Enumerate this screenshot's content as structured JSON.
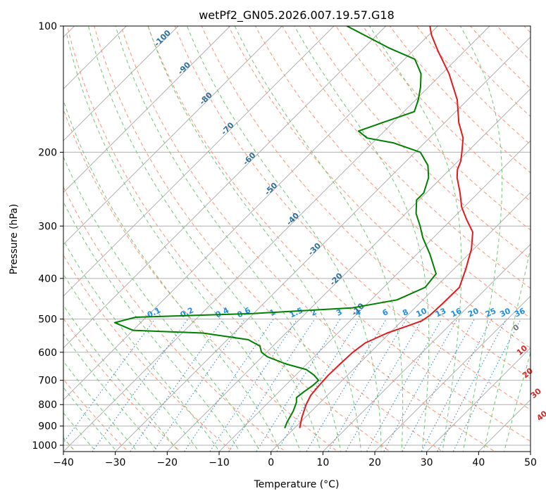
{
  "chart_data": {
    "type": "skew-t log-p",
    "title": "wetPf2_GN05.2026.007.19.57.G18",
    "xlabel": "Temperature (°C)",
    "ylabel": "Pressure (hPa)",
    "xlim": [
      -40,
      50
    ],
    "ylim": [
      1050,
      100
    ],
    "y_scale": "log",
    "grid": true,
    "x_ticks": [
      "−40",
      "−30",
      "−20",
      "−10",
      "0",
      "10",
      "20",
      "30",
      "40",
      "50"
    ],
    "y_ticks": [
      "100",
      "200",
      "300",
      "400",
      "500",
      "600",
      "700",
      "800",
      "900",
      "1000"
    ],
    "isotherm_labels": [
      "-100",
      "-90",
      "-80",
      "-70",
      "-60",
      "-50",
      "-40",
      "-30",
      "-20",
      "-10"
    ],
    "mixing_ratio_labels": [
      "0.1",
      "0.2",
      "0.4",
      "0.6",
      "1",
      "1.5",
      "2",
      "3",
      "4",
      "6",
      "8",
      "10",
      "13",
      "16",
      "20",
      "25",
      "30",
      "36"
    ],
    "moist_adiabat_labels": [
      "0",
      "10",
      "20",
      "30",
      "40"
    ],
    "series": [
      {
        "role": "temperature",
        "color": "#e31a1c",
        "points": [
          {
            "p": 910,
            "t": 1.0
          },
          {
            "p": 860,
            "t": -0.6
          },
          {
            "p": 800,
            "t": -2.3
          },
          {
            "p": 760,
            "t": -3.2
          },
          {
            "p": 720,
            "t": -3.5
          },
          {
            "p": 680,
            "t": -3.7
          },
          {
            "p": 640,
            "t": -3.6
          },
          {
            "p": 600,
            "t": -3.4
          },
          {
            "p": 570,
            "t": -2.8
          },
          {
            "p": 540,
            "t": -0.5
          },
          {
            "p": 520,
            "t": 2.0
          },
          {
            "p": 505,
            "t": 3.8
          },
          {
            "p": 490,
            "t": 4.3
          },
          {
            "p": 460,
            "t": 4.5
          },
          {
            "p": 420,
            "t": 4.6
          },
          {
            "p": 380,
            "t": 2.3
          },
          {
            "p": 340,
            "t": -0.5
          },
          {
            "p": 310,
            "t": -3.5
          },
          {
            "p": 290,
            "t": -7.0
          },
          {
            "p": 270,
            "t": -10.5
          },
          {
            "p": 250,
            "t": -13.5
          },
          {
            "p": 230,
            "t": -17.0
          },
          {
            "p": 220,
            "t": -18.5
          },
          {
            "p": 210,
            "t": -19.5
          },
          {
            "p": 200,
            "t": -21.0
          },
          {
            "p": 185,
            "t": -23.5
          },
          {
            "p": 170,
            "t": -27.3
          },
          {
            "p": 150,
            "t": -32.0
          },
          {
            "p": 130,
            "t": -38.6
          },
          {
            "p": 115,
            "t": -45.0
          },
          {
            "p": 105,
            "t": -49.5
          },
          {
            "p": 100,
            "t": -51.5
          }
        ]
      },
      {
        "role": "dewpoint",
        "color": "#008000",
        "points": [
          {
            "p": 910,
            "t": -1.9
          },
          {
            "p": 880,
            "t": -2.6
          },
          {
            "p": 830,
            "t": -3.5
          },
          {
            "p": 790,
            "t": -4.6
          },
          {
            "p": 770,
            "t": -5.5
          },
          {
            "p": 745,
            "t": -5.2
          },
          {
            "p": 720,
            "t": -4.7
          },
          {
            "p": 700,
            "t": -4.6
          },
          {
            "p": 680,
            "t": -6.5
          },
          {
            "p": 660,
            "t": -9.0
          },
          {
            "p": 640,
            "t": -14.0
          },
          {
            "p": 615,
            "t": -19.0
          },
          {
            "p": 600,
            "t": -21.0
          },
          {
            "p": 580,
            "t": -22.5
          },
          {
            "p": 560,
            "t": -26.0
          },
          {
            "p": 540,
            "t": -36.0
          },
          {
            "p": 532,
            "t": -50.0
          },
          {
            "p": 510,
            "t": -55.0
          },
          {
            "p": 495,
            "t": -52.0
          },
          {
            "p": 485,
            "t": -30.0
          },
          {
            "p": 470,
            "t": -12.0
          },
          {
            "p": 450,
            "t": -5.0
          },
          {
            "p": 420,
            "t": -2.0
          },
          {
            "p": 390,
            "t": -2.5
          },
          {
            "p": 350,
            "t": -7.5
          },
          {
            "p": 320,
            "t": -12.0
          },
          {
            "p": 300,
            "t": -14.8
          },
          {
            "p": 280,
            "t": -18.0
          },
          {
            "p": 260,
            "t": -20.5
          },
          {
            "p": 250,
            "t": -20.5
          },
          {
            "p": 230,
            "t": -22.5
          },
          {
            "p": 215,
            "t": -25.0
          },
          {
            "p": 200,
            "t": -29.0
          },
          {
            "p": 190,
            "t": -36.0
          },
          {
            "p": 185,
            "t": -42.0
          },
          {
            "p": 178,
            "t": -45.0
          },
          {
            "p": 170,
            "t": -42.0
          },
          {
            "p": 160,
            "t": -38.0
          },
          {
            "p": 150,
            "t": -39.5
          },
          {
            "p": 140,
            "t": -41.5
          },
          {
            "p": 130,
            "t": -44.0
          },
          {
            "p": 120,
            "t": -48.0
          },
          {
            "p": 113,
            "t": -55.0
          },
          {
            "p": 100,
            "t": -67.5
          }
        ]
      }
    ]
  }
}
